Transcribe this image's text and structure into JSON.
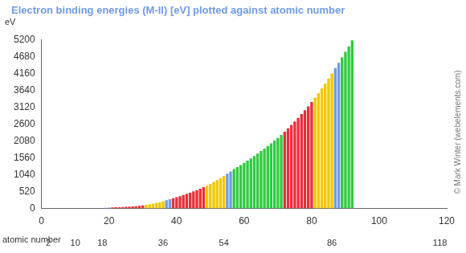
{
  "chart_data": {
    "type": "bar",
    "title": "Electron binding energies (M-II) [eV] plotted against atomic number",
    "ylabel": "eV",
    "xlabel": "atomic number",
    "credit": "© Mark Winter (webelements.com)",
    "x": [
      19,
      20,
      21,
      22,
      23,
      24,
      25,
      26,
      27,
      28,
      29,
      30,
      31,
      32,
      33,
      34,
      35,
      36,
      37,
      38,
      39,
      40,
      41,
      42,
      43,
      44,
      45,
      46,
      47,
      48,
      49,
      50,
      51,
      52,
      53,
      54,
      55,
      56,
      57,
      58,
      59,
      60,
      61,
      62,
      63,
      64,
      65,
      66,
      67,
      68,
      69,
      70,
      71,
      72,
      73,
      74,
      75,
      76,
      77,
      78,
      79,
      80,
      81,
      82,
      83,
      84,
      85,
      86,
      87,
      88,
      89,
      90,
      91,
      92
    ],
    "values": [
      18.3,
      25.4,
      28.3,
      32.6,
      37.2,
      42.2,
      47.2,
      52.7,
      58.9,
      68.0,
      77.3,
      91.4,
      107.2,
      129.2,
      146.2,
      166.5,
      189,
      222.2,
      248.7,
      280.3,
      310.6,
      344.2,
      376.1,
      411.6,
      447.6,
      483.5,
      521.3,
      559.9,
      602.4,
      651.9,
      703.2,
      756.5,
      812.7,
      870.8,
      931,
      1002.1,
      1071,
      1137,
      1209,
      1274,
      1337,
      1403,
      1471.4,
      1541,
      1614,
      1688,
      1768,
      1842,
      1923,
      2006,
      2090,
      2173,
      2264,
      2365,
      2469,
      2575,
      2682,
      2792,
      2909,
      3027,
      3148,
      3279,
      3416,
      3554,
      3696,
      3854,
      4008,
      4159,
      4327,
      4490,
      4656,
      4830,
      5001,
      5182
    ],
    "colors": [
      "#6f9ae8",
      "#6f9ae8",
      "#e8303a",
      "#e8303a",
      "#e8303a",
      "#e8303a",
      "#e8303a",
      "#e8303a",
      "#e8303a",
      "#e8303a",
      "#e8303a",
      "#e8303a",
      "#f0c800",
      "#f0c800",
      "#f0c800",
      "#f0c800",
      "#f0c800",
      "#f0c800",
      "#6f9ae8",
      "#6f9ae8",
      "#e8303a",
      "#e8303a",
      "#e8303a",
      "#e8303a",
      "#e8303a",
      "#e8303a",
      "#e8303a",
      "#e8303a",
      "#e8303a",
      "#e8303a",
      "#f0c800",
      "#f0c800",
      "#f0c800",
      "#f0c800",
      "#f0c800",
      "#f0c800",
      "#6f9ae8",
      "#6f9ae8",
      "#2ecc40",
      "#2ecc40",
      "#2ecc40",
      "#2ecc40",
      "#2ecc40",
      "#2ecc40",
      "#2ecc40",
      "#2ecc40",
      "#2ecc40",
      "#2ecc40",
      "#2ecc40",
      "#2ecc40",
      "#2ecc40",
      "#2ecc40",
      "#2ecc40",
      "#e8303a",
      "#e8303a",
      "#e8303a",
      "#e8303a",
      "#e8303a",
      "#e8303a",
      "#e8303a",
      "#e8303a",
      "#e8303a",
      "#f0c800",
      "#f0c800",
      "#f0c800",
      "#f0c800",
      "#f0c800",
      "#f0c800",
      "#6f9ae8",
      "#6f9ae8",
      "#2ecc40",
      "#2ecc40",
      "#2ecc40",
      "#2ecc40"
    ],
    "xlim": [
      0,
      120
    ],
    "xticks": [
      0,
      20,
      40,
      60,
      80,
      100,
      120
    ],
    "x2ticks": [
      2,
      10,
      18,
      36,
      54,
      86,
      118
    ],
    "ylim": [
      0,
      5200
    ],
    "yticks": [
      0,
      520,
      1040,
      1560,
      2080,
      2600,
      3120,
      3640,
      4160,
      4680,
      5200
    ],
    "grid": false
  }
}
